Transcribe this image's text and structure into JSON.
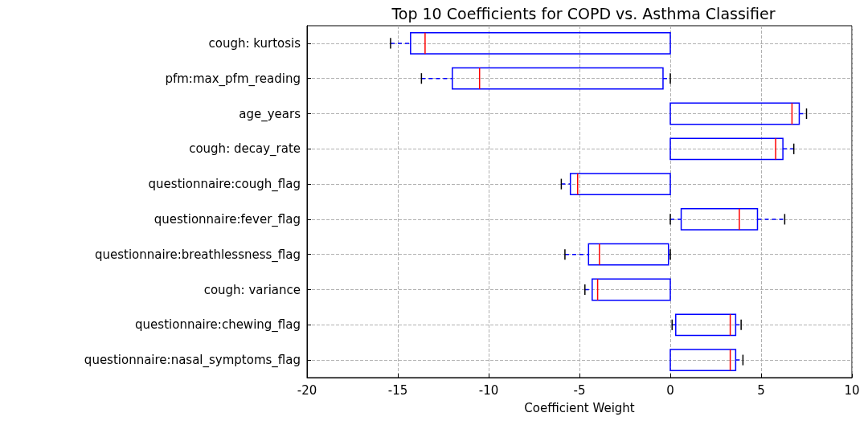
{
  "chart_data": {
    "type": "box",
    "title": "Top 10 Coefficients for COPD vs. Asthma Classifier",
    "xlabel": "Coefficient Weight",
    "orientation": "horizontal",
    "categories": [
      "cough: kurtosis",
      "pfm:max_pfm_reading",
      "age_years",
      "cough: decay_rate",
      "questionnaire:cough_flag",
      "questionnaire:fever_flag",
      "questionnaire:breathlessness_flag",
      "cough: variance",
      "questionnaire:chewing_flag",
      "questionnaire:nasal_symptoms_flag"
    ],
    "series": [
      {
        "color": "#0000ff",
        "boxes": [
          {
            "low": -15.4,
            "q1": -14.3,
            "median": -13.5,
            "q3": 0,
            "high": 0
          },
          {
            "low": -13.7,
            "q1": -12,
            "median": -10.5,
            "q3": -0.4,
            "high": 0
          },
          {
            "low": 0,
            "q1": 0,
            "median": 6.7,
            "q3": 7.1,
            "high": 7.5
          },
          {
            "low": 0,
            "q1": 0,
            "median": 5.8,
            "q3": 6.2,
            "high": 6.8
          },
          {
            "low": -6,
            "q1": -5.5,
            "median": -5.1,
            "q3": 0,
            "high": 0
          },
          {
            "low": 0,
            "q1": 0.6,
            "median": 3.8,
            "q3": 4.8,
            "high": 6.3
          },
          {
            "low": -5.8,
            "q1": -4.5,
            "median": -3.9,
            "q3": -0.1,
            "high": 0
          },
          {
            "low": -4.7,
            "q1": -4.3,
            "median": -4,
            "q3": 0,
            "high": 0
          },
          {
            "low": 0.1,
            "q1": 0.3,
            "median": 3.3,
            "q3": 3.6,
            "high": 3.9
          },
          {
            "low": 0,
            "q1": 0,
            "median": 3.3,
            "q3": 3.6,
            "high": 4
          }
        ]
      }
    ],
    "xlim": [
      -20,
      10
    ],
    "xticks": [
      -20,
      -15,
      -10,
      -5,
      0,
      5,
      10
    ],
    "grid": true
  }
}
